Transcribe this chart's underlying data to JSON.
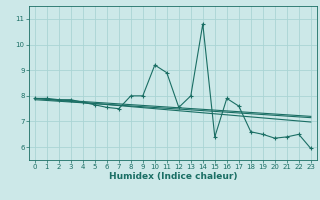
{
  "xlabel": "Humidex (Indice chaleur)",
  "bg_color": "#cce8e8",
  "grid_color": "#aad4d4",
  "line_color": "#1a6e64",
  "xlim": [
    -0.5,
    23.5
  ],
  "ylim": [
    5.5,
    11.5
  ],
  "yticks": [
    6,
    7,
    8,
    9,
    10,
    11
  ],
  "xticks": [
    0,
    1,
    2,
    3,
    4,
    5,
    6,
    7,
    8,
    9,
    10,
    11,
    12,
    13,
    14,
    15,
    16,
    17,
    18,
    19,
    20,
    21,
    22,
    23
  ],
  "main_x": [
    0,
    1,
    2,
    3,
    4,
    5,
    6,
    7,
    8,
    9,
    10,
    11,
    12,
    13,
    14,
    15,
    16,
    17,
    18,
    19,
    20,
    21,
    22,
    23
  ],
  "main_y": [
    7.9,
    7.9,
    7.85,
    7.85,
    7.75,
    7.65,
    7.55,
    7.5,
    8.0,
    8.0,
    9.2,
    8.9,
    7.55,
    8.0,
    10.8,
    6.4,
    7.9,
    7.6,
    6.6,
    6.5,
    6.35,
    6.4,
    6.5,
    5.95
  ],
  "line1_x": [
    0,
    23
  ],
  "line1_y": [
    7.9,
    7.2
  ],
  "line2_x": [
    0,
    23
  ],
  "line2_y": [
    7.85,
    7.15
  ],
  "line3_x": [
    0,
    23
  ],
  "line3_y": [
    7.9,
    6.98
  ]
}
